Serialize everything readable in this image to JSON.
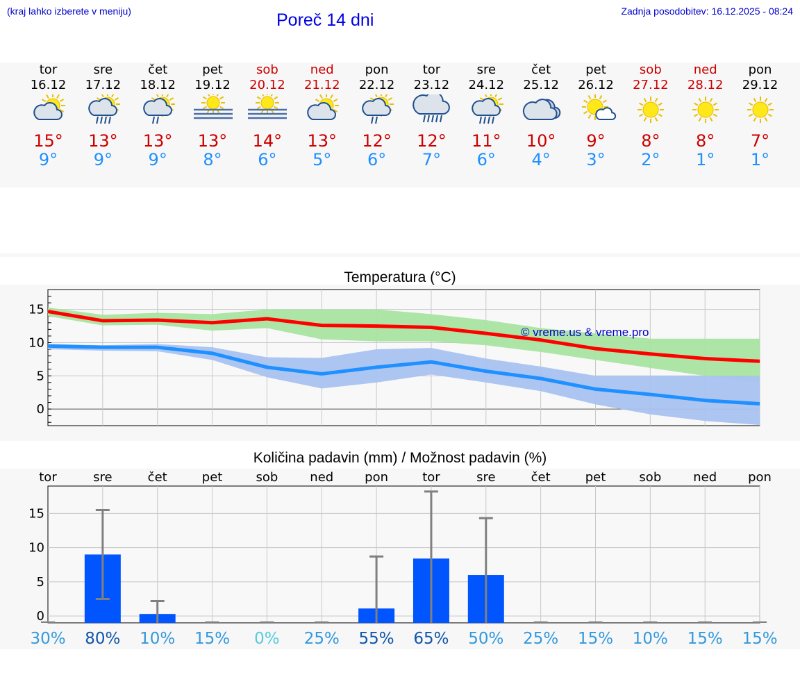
{
  "header": {
    "hint": "(kraj lahko izberete v meniju)",
    "title": "Poreč 14 dni",
    "updated": "Zadnja posodobitev: 16.12.2025 - 08:24"
  },
  "days": [
    {
      "name": "tor",
      "date": "16.12",
      "weekend": false,
      "icon": "sun-cloud",
      "tmax": "15°",
      "tmin": "9°"
    },
    {
      "name": "sre",
      "date": "17.12",
      "weekend": false,
      "icon": "sun-cloud-rain",
      "tmax": "13°",
      "tmin": "9°"
    },
    {
      "name": "čet",
      "date": "18.12",
      "weekend": false,
      "icon": "sun-cloud-drizzle",
      "tmax": "13°",
      "tmin": "9°"
    },
    {
      "name": "pet",
      "date": "19.12",
      "weekend": false,
      "icon": "sun-fog",
      "tmax": "13°",
      "tmin": "8°"
    },
    {
      "name": "sob",
      "date": "20.12",
      "weekend": true,
      "icon": "sun-fog",
      "tmax": "14°",
      "tmin": "6°"
    },
    {
      "name": "ned",
      "date": "21.12",
      "weekend": true,
      "icon": "sun-cloud",
      "tmax": "13°",
      "tmin": "5°"
    },
    {
      "name": "pon",
      "date": "22.12",
      "weekend": false,
      "icon": "sun-cloud-drizzle",
      "tmax": "12°",
      "tmin": "6°"
    },
    {
      "name": "tor",
      "date": "23.12",
      "weekend": false,
      "icon": "cloud-rain",
      "tmax": "12°",
      "tmin": "7°"
    },
    {
      "name": "sre",
      "date": "24.12",
      "weekend": false,
      "icon": "sun-cloud-rain",
      "tmax": "11°",
      "tmin": "6°"
    },
    {
      "name": "čet",
      "date": "25.12",
      "weekend": false,
      "icon": "clouds",
      "tmax": "10°",
      "tmin": "4°"
    },
    {
      "name": "pet",
      "date": "26.12",
      "weekend": false,
      "icon": "sun-small-cloud",
      "tmax": "9°",
      "tmin": "3°"
    },
    {
      "name": "sob",
      "date": "27.12",
      "weekend": true,
      "icon": "sun",
      "tmax": "8°",
      "tmin": "2°"
    },
    {
      "name": "ned",
      "date": "28.12",
      "weekend": true,
      "icon": "sun",
      "tmax": "8°",
      "tmin": "1°"
    },
    {
      "name": "pon",
      "date": "29.12",
      "weekend": false,
      "icon": "sun",
      "tmax": "7°",
      "tmin": "1°"
    }
  ],
  "chart_data": [
    {
      "type": "line",
      "title": "Temperatura (°C)",
      "watermark": "© vreme.us & vreme.pro",
      "ylim": [
        -2.5,
        18
      ],
      "yticks": [
        0,
        5,
        10,
        15
      ],
      "x": [
        0,
        1,
        2,
        3,
        4,
        5,
        6,
        7,
        8,
        9,
        10,
        11,
        12,
        13
      ],
      "series": [
        {
          "name": "max",
          "color": "#ff0000",
          "values": [
            14.7,
            13.3,
            13.4,
            13.0,
            13.6,
            12.6,
            12.5,
            12.3,
            11.4,
            10.4,
            9.1,
            8.3,
            7.6,
            7.2
          ]
        },
        {
          "name": "min",
          "color": "#1e90ff",
          "values": [
            9.5,
            9.3,
            9.3,
            8.4,
            6.3,
            5.3,
            6.3,
            7.1,
            5.7,
            4.6,
            3.0,
            2.2,
            1.3,
            0.8
          ]
        }
      ],
      "bands": [
        {
          "name": "max-range",
          "color": "#a8e4a0",
          "upper": [
            15.3,
            14.2,
            14.5,
            14.3,
            15.0,
            15.0,
            15.0,
            14.3,
            13.4,
            12.2,
            11.4,
            10.6,
            10.6,
            10.6
          ],
          "lower": [
            14.0,
            12.6,
            12.7,
            11.8,
            12.2,
            10.5,
            10.2,
            10.2,
            9.6,
            8.6,
            7.4,
            6.2,
            5.0,
            4.0
          ]
        },
        {
          "name": "min-range",
          "color": "#a9c2f0",
          "upper": [
            9.8,
            9.6,
            9.8,
            9.3,
            7.8,
            7.7,
            9.0,
            9.2,
            7.6,
            6.4,
            5.0,
            5.0,
            5.0,
            5.0
          ],
          "lower": [
            9.0,
            8.8,
            8.7,
            7.4,
            4.8,
            3.1,
            4.0,
            5.2,
            4.0,
            2.7,
            0.7,
            -0.8,
            -1.8,
            -2.4
          ]
        }
      ]
    },
    {
      "type": "bar",
      "title": "Količina padavin (mm) / Možnost padavin (%)",
      "categories": [
        "tor",
        "sre",
        "čet",
        "pet",
        "sob",
        "ned",
        "pon",
        "tor",
        "sre",
        "čet",
        "pet",
        "sob",
        "ned",
        "pon"
      ],
      "ylim": [
        -1,
        19
      ],
      "yticks": [
        0,
        5,
        10,
        15
      ],
      "bar_color": "#0055ff",
      "values": [
        0,
        9.0,
        0.3,
        0,
        0,
        0,
        1.1,
        8.4,
        6.0,
        0,
        0,
        0,
        0,
        0
      ],
      "error_low": [
        0,
        2.5,
        0,
        0,
        0,
        0,
        0,
        0,
        0,
        0,
        0,
        0,
        0,
        0
      ],
      "error_high": [
        0,
        15.5,
        2.2,
        0,
        0,
        0,
        8.7,
        18.2,
        14.3,
        0,
        0,
        0,
        0,
        0
      ],
      "probabilities": [
        "30%",
        "80%",
        "10%",
        "15%",
        "0%",
        "25%",
        "55%",
        "65%",
        "50%",
        "25%",
        "15%",
        "10%",
        "15%",
        "15%"
      ],
      "probability_colors": [
        "#3399dd",
        "#1155aa",
        "#3399dd",
        "#3399dd",
        "#55ccdd",
        "#3399dd",
        "#1155aa",
        "#1155aa",
        "#3399dd",
        "#3399dd",
        "#3399dd",
        "#3399dd",
        "#3399dd",
        "#3399dd"
      ]
    }
  ]
}
